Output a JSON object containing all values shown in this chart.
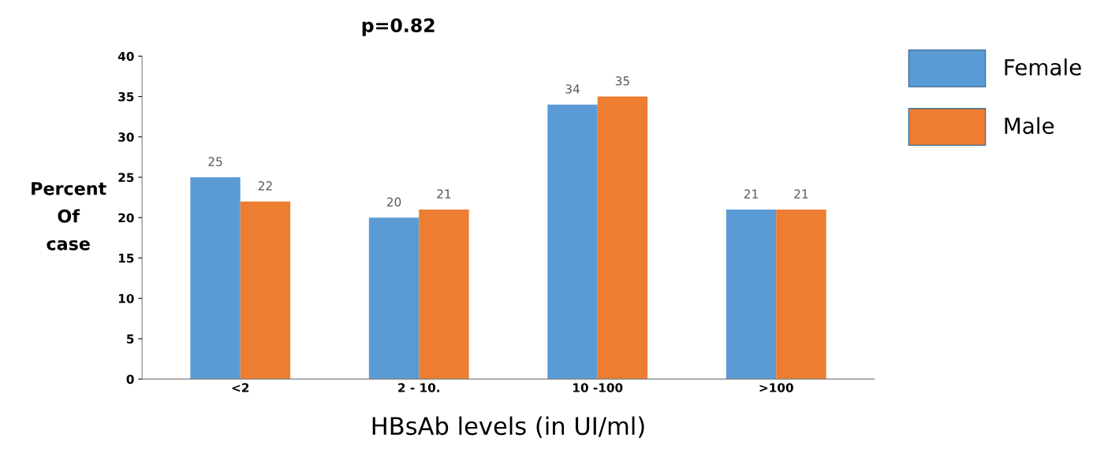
{
  "chart_data": {
    "type": "bar",
    "title": "p=0.82",
    "xlabel": "HBsAb levels (in UI/ml)",
    "ylabel": "Percent\nOf\ncase",
    "categories": [
      "<2",
      "2 - 10.",
      "10 -100",
      ">100"
    ],
    "series": [
      {
        "name": "Female",
        "color": "#5b9bd5",
        "values": [
          25,
          20,
          34,
          21
        ]
      },
      {
        "name": "Male",
        "color": "#ed7d31",
        "values": [
          22,
          21,
          35,
          21
        ]
      }
    ],
    "ylim": [
      0,
      40
    ],
    "yticks": [
      0,
      5,
      10,
      15,
      20,
      25,
      30,
      35,
      40
    ],
    "grid": false,
    "legend": "top right",
    "data_labels": true
  }
}
